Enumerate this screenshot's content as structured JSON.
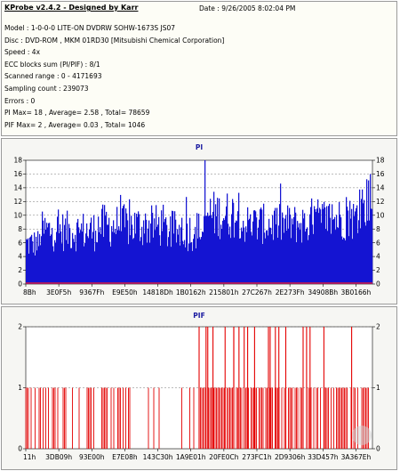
{
  "header": {
    "title": "KProbe v2.4.2 - Designed by Karr",
    "date": "Date : 9/26/2005 8:02:04 PM"
  },
  "info": {
    "model": "Model : 1-0-0-0 LITE-ON DVDRW SOHW-1673S JS07",
    "disc": "Disc : DVD-ROM , MKM 01RD30  [Mitsubishi Chemical Corporation]",
    "speed": "Speed : 4x",
    "ecc": "ECC blocks sum (PI/PIF) : 8/1",
    "range": "Scanned range : 0 - 4171693",
    "sampling": "Sampling count : 239073",
    "errors": "Errors : 0",
    "pi_summary": "PI Max= 18 , Average= 2.58 , Total= 78659",
    "pif_summary": "PIF Max= 2 , Average= 0.03 , Total= 1046"
  },
  "colors": {
    "pi_bars": "#1414d2",
    "pi_line": "#ff1e1e",
    "pif_bars": "#e40000",
    "title": "#1a1aa0"
  },
  "chart_data": [
    {
      "type": "bar",
      "title": "PI",
      "ylim": [
        0,
        18
      ],
      "yticks": [
        "0",
        "2",
        "4",
        "6",
        "8",
        "10",
        "12",
        "14",
        "16",
        "18"
      ],
      "xticks": [
        "8Bh",
        "3E0F5h",
        "9367Fh",
        "E9E50h",
        "14818Dh",
        "1B0162h",
        "215801h",
        "27C267h",
        "2E273Fh",
        "34908Bh",
        "3B0166h"
      ],
      "grid": true,
      "segments": [
        {
          "x_end": 0.04,
          "base": 5.2,
          "spread": 2.2
        },
        {
          "x_end": 0.2,
          "base": 6.8,
          "spread": 3.0
        },
        {
          "x_end": 0.4,
          "base": 7.5,
          "spread": 3.2
        },
        {
          "x_end": 0.52,
          "base": 6.8,
          "spread": 3.0
        },
        {
          "x_end": 0.62,
          "base": 9.0,
          "spread": 3.6
        },
        {
          "x_end": 0.82,
          "base": 7.8,
          "spread": 3.0
        },
        {
          "x_end": 0.96,
          "base": 8.5,
          "spread": 3.2
        },
        {
          "x_end": 1.0,
          "base": 10.5,
          "spread": 4.2
        }
      ],
      "peaks": [
        {
          "x": 0.516,
          "value": 18
        },
        {
          "x": 0.995,
          "value": 16
        }
      ],
      "series": [
        {
          "name": "PI",
          "values_summary": {
            "max": 18,
            "average": 2.58,
            "total": 78659
          }
        }
      ]
    },
    {
      "type": "bar",
      "title": "PIF",
      "ylim": [
        0,
        2
      ],
      "yticks": [
        "0",
        "1",
        "2"
      ],
      "xticks": [
        "11h",
        "3DB09h",
        "93E00h",
        "E7E08h",
        "143C30h",
        "1A9E01h",
        "20FE0Ch",
        "273FC1h",
        "2D9306h",
        "33D457h",
        "3A367Eh"
      ],
      "grid": true,
      "one_density": [
        {
          "x_end": 0.12,
          "rate": 0.45
        },
        {
          "x_end": 0.3,
          "rate": 0.35
        },
        {
          "x_end": 0.5,
          "rate": 0.18
        },
        {
          "x_end": 0.75,
          "rate": 0.75
        },
        {
          "x_end": 1.0,
          "rate": 0.6
        }
      ],
      "two_positions": [
        0.5,
        0.52,
        0.525,
        0.54,
        0.575,
        0.6,
        0.6,
        0.615,
        0.63,
        0.64,
        0.66,
        0.7,
        0.705,
        0.72,
        0.73,
        0.75,
        0.8,
        0.81,
        0.82,
        0.86,
        0.94
      ],
      "series": [
        {
          "name": "PIF",
          "values_summary": {
            "max": 2,
            "average": 0.03,
            "total": 1046
          }
        }
      ]
    }
  ]
}
